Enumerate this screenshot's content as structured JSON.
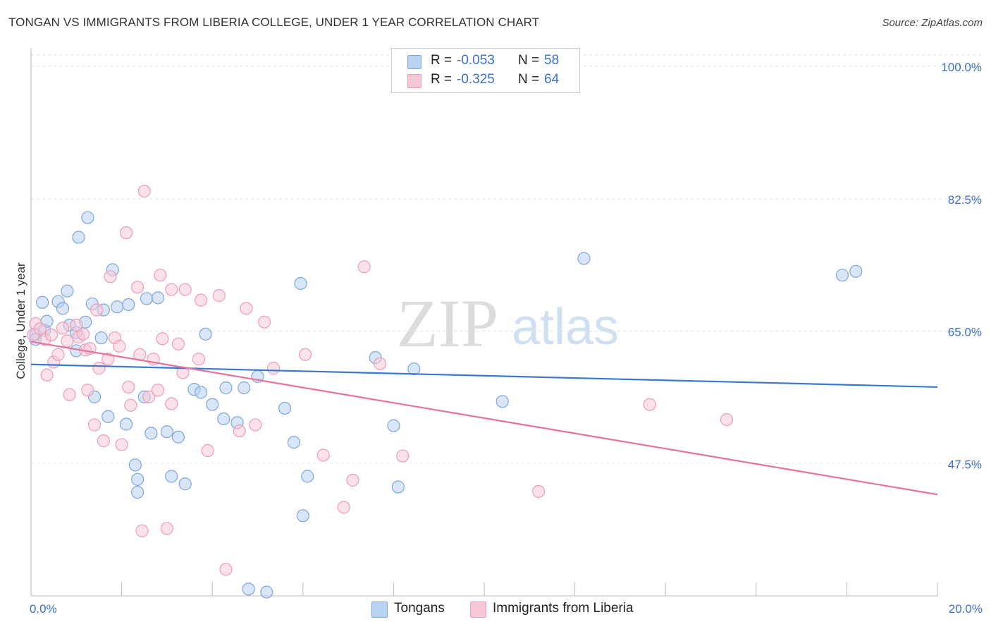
{
  "title": "TONGAN VS IMMIGRANTS FROM LIBERIA COLLEGE, UNDER 1 YEAR CORRELATION CHART",
  "source": "Source: ZipAtlas.com",
  "watermark": {
    "zip": "ZIP",
    "atlas": "atlas"
  },
  "legend": {
    "tongans": {
      "r_label": "R =",
      "r_value": "-0.053",
      "n_label": "N =",
      "n_value": "58",
      "fill": "#b9d2f1",
      "stroke": "#7ea6de"
    },
    "liberia": {
      "r_label": "R =",
      "r_value": "-0.325",
      "n_label": "N =",
      "n_value": "64",
      "fill": "#f7c8d7",
      "stroke": "#eb9db6"
    }
  },
  "bottom_legend": [
    "Tongans",
    "Immigrants from Liberia"
  ],
  "chart_data": {
    "type": "scatter",
    "title": "TONGAN VS IMMIGRANTS FROM LIBERIA COLLEGE, UNDER 1 YEAR CORRELATION CHART",
    "xlabel": "",
    "ylabel": "College, Under 1 year",
    "xlim": [
      0,
      20
    ],
    "ylim": [
      30,
      101.5
    ],
    "x_tick_labels": [
      "0.0%",
      "20.0%"
    ],
    "y_ticks": [
      100,
      82.5,
      65,
      47.5
    ],
    "y_tick_labels": [
      "100.0%",
      "82.5%",
      "65.0%",
      "47.5%"
    ],
    "grid": true,
    "series": [
      {
        "name": "Tongans",
        "color": "#3a78d0",
        "point_fill": "#b9d2f1",
        "point_stroke": "#7ea6de",
        "trend": {
          "x": [
            0,
            20
          ],
          "y": [
            60.6,
            57.6
          ]
        },
        "points": [
          [
            0.1,
            64.6
          ],
          [
            0.1,
            63.9
          ],
          [
            0.25,
            68.8
          ],
          [
            0.3,
            65.1
          ],
          [
            0.35,
            66.3
          ],
          [
            0.6,
            68.9
          ],
          [
            0.7,
            68.0
          ],
          [
            0.8,
            70.3
          ],
          [
            0.85,
            65.8
          ],
          [
            1.0,
            64.8
          ],
          [
            1.0,
            62.4
          ],
          [
            1.05,
            77.4
          ],
          [
            1.2,
            66.2
          ],
          [
            1.25,
            80.0
          ],
          [
            1.35,
            68.6
          ],
          [
            1.4,
            56.3
          ],
          [
            1.55,
            64.1
          ],
          [
            1.6,
            67.8
          ],
          [
            1.7,
            53.7
          ],
          [
            1.8,
            73.1
          ],
          [
            1.9,
            68.2
          ],
          [
            2.1,
            52.7
          ],
          [
            2.15,
            68.5
          ],
          [
            2.3,
            47.3
          ],
          [
            2.35,
            45.4
          ],
          [
            2.35,
            43.7
          ],
          [
            2.5,
            56.3
          ],
          [
            2.55,
            69.3
          ],
          [
            2.65,
            51.5
          ],
          [
            2.8,
            69.4
          ],
          [
            3.0,
            51.7
          ],
          [
            3.1,
            45.8
          ],
          [
            3.25,
            51.0
          ],
          [
            3.4,
            44.8
          ],
          [
            3.6,
            57.3
          ],
          [
            3.75,
            56.9
          ],
          [
            3.85,
            64.6
          ],
          [
            4.0,
            55.3
          ],
          [
            4.25,
            53.4
          ],
          [
            4.3,
            57.5
          ],
          [
            4.55,
            52.9
          ],
          [
            4.7,
            57.5
          ],
          [
            4.8,
            30.9
          ],
          [
            5.0,
            59.0
          ],
          [
            5.2,
            30.5
          ],
          [
            5.6,
            54.8
          ],
          [
            5.8,
            50.3
          ],
          [
            5.95,
            71.3
          ],
          [
            6.0,
            40.6
          ],
          [
            6.1,
            45.8
          ],
          [
            7.6,
            61.5
          ],
          [
            8.0,
            52.5
          ],
          [
            8.1,
            44.4
          ],
          [
            8.45,
            60.0
          ],
          [
            10.4,
            55.7
          ],
          [
            12.2,
            74.6
          ],
          [
            17.9,
            72.4
          ],
          [
            18.2,
            72.9
          ]
        ]
      },
      {
        "name": "Immigrants from Liberia",
        "color": "#e8739a",
        "point_fill": "#f7c8d7",
        "point_stroke": "#eb9db6",
        "trend": {
          "x": [
            0,
            20
          ],
          "y": [
            63.6,
            43.4
          ]
        },
        "points": [
          [
            0.05,
            64.5
          ],
          [
            0.1,
            66.0
          ],
          [
            0.2,
            65.3
          ],
          [
            0.3,
            63.9
          ],
          [
            0.35,
            59.2
          ],
          [
            0.45,
            64.5
          ],
          [
            0.5,
            60.9
          ],
          [
            0.6,
            61.9
          ],
          [
            0.7,
            65.4
          ],
          [
            0.8,
            63.7
          ],
          [
            0.85,
            56.6
          ],
          [
            1.0,
            65.8
          ],
          [
            1.05,
            64.2
          ],
          [
            1.15,
            64.6
          ],
          [
            1.2,
            62.5
          ],
          [
            1.25,
            57.2
          ],
          [
            1.3,
            62.7
          ],
          [
            1.4,
            52.6
          ],
          [
            1.45,
            67.8
          ],
          [
            1.5,
            60.1
          ],
          [
            1.6,
            50.5
          ],
          [
            1.7,
            61.3
          ],
          [
            1.75,
            72.2
          ],
          [
            1.85,
            64.1
          ],
          [
            1.95,
            63.0
          ],
          [
            2.0,
            50.0
          ],
          [
            2.1,
            78.0
          ],
          [
            2.15,
            57.6
          ],
          [
            2.2,
            55.2
          ],
          [
            2.35,
            70.8
          ],
          [
            2.4,
            61.9
          ],
          [
            2.45,
            38.6
          ],
          [
            2.5,
            83.5
          ],
          [
            2.6,
            56.3
          ],
          [
            2.7,
            61.3
          ],
          [
            2.8,
            57.2
          ],
          [
            2.85,
            72.4
          ],
          [
            2.9,
            64.0
          ],
          [
            3.0,
            38.9
          ],
          [
            3.1,
            70.5
          ],
          [
            3.1,
            55.4
          ],
          [
            3.25,
            63.3
          ],
          [
            3.35,
            59.5
          ],
          [
            3.4,
            70.5
          ],
          [
            3.7,
            61.3
          ],
          [
            3.75,
            69.1
          ],
          [
            3.9,
            49.2
          ],
          [
            4.15,
            69.7
          ],
          [
            4.3,
            33.5
          ],
          [
            4.6,
            51.8
          ],
          [
            4.75,
            68.0
          ],
          [
            4.95,
            52.6
          ],
          [
            5.15,
            66.2
          ],
          [
            5.35,
            60.1
          ],
          [
            6.05,
            61.9
          ],
          [
            6.45,
            48.6
          ],
          [
            6.9,
            41.7
          ],
          [
            7.1,
            45.3
          ],
          [
            7.35,
            73.5
          ],
          [
            7.7,
            60.7
          ],
          [
            8.2,
            48.5
          ],
          [
            11.2,
            43.8
          ],
          [
            13.65,
            55.3
          ],
          [
            15.35,
            53.3
          ]
        ]
      }
    ]
  }
}
